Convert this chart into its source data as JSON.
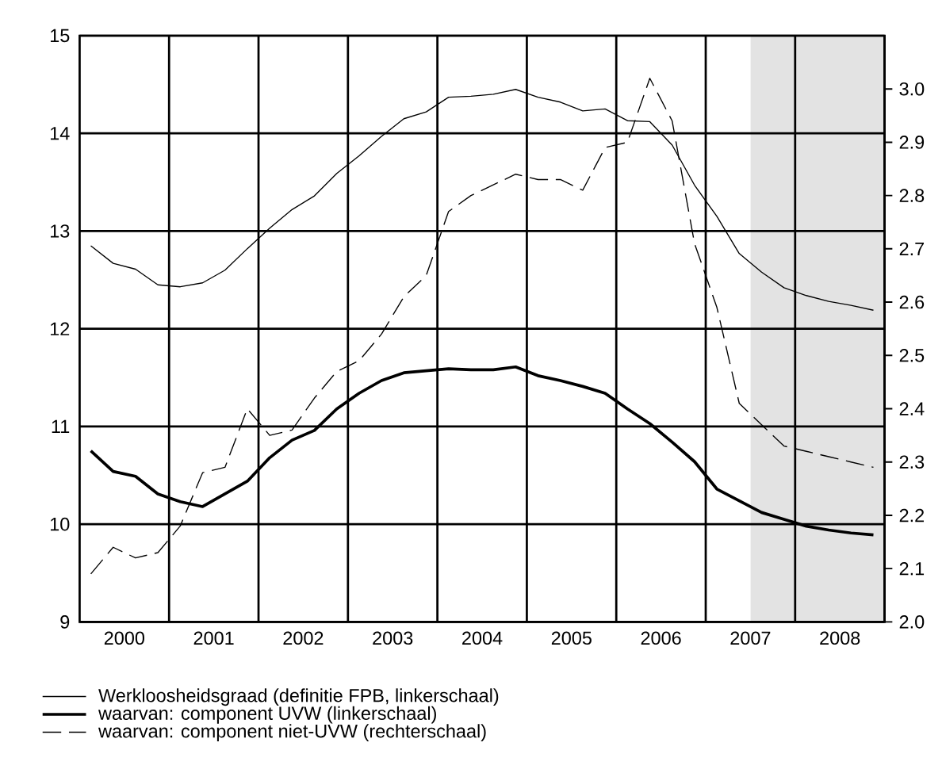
{
  "chart_data": {
    "type": "line",
    "x": [
      2000.125,
      2000.375,
      2000.625,
      2000.875,
      2001.125,
      2001.375,
      2001.625,
      2001.875,
      2002.125,
      2002.375,
      2002.625,
      2002.875,
      2003.125,
      2003.375,
      2003.625,
      2003.875,
      2004.125,
      2004.375,
      2004.625,
      2004.875,
      2005.125,
      2005.375,
      2005.625,
      2005.875,
      2006.125,
      2006.375,
      2006.625,
      2006.875,
      2007.125,
      2007.375,
      2007.625,
      2007.875,
      2008.125,
      2008.375,
      2008.625,
      2008.875
    ],
    "series": [
      {
        "name": "Werkloosheidsgraad (definitie FPB, linkerschaal)",
        "color": "#000000",
        "line_style": "solid",
        "axis": "y",
        "values": [
          12.85,
          12.67,
          12.61,
          12.45,
          12.43,
          12.47,
          12.6,
          12.82,
          13.03,
          13.22,
          13.36,
          13.59,
          13.77,
          13.97,
          14.15,
          14.22,
          14.37,
          14.38,
          14.4,
          14.45,
          14.37,
          14.32,
          14.23,
          14.25,
          14.13,
          14.12,
          13.88,
          13.47,
          13.15,
          12.77,
          12.58,
          12.42,
          12.34,
          12.28,
          12.24,
          12.19
        ]
      },
      {
        "name": "waarvan: component UVW (linkerschaal)",
        "color": "#000000",
        "line_style": "solid",
        "axis": "y",
        "values": [
          10.75,
          10.54,
          10.49,
          10.31,
          10.23,
          10.18,
          10.31,
          10.44,
          10.68,
          10.86,
          10.96,
          11.18,
          11.34,
          11.47,
          11.55,
          11.57,
          11.59,
          11.58,
          11.58,
          11.61,
          11.52,
          11.47,
          11.41,
          11.34,
          11.18,
          11.03,
          10.84,
          10.64,
          10.36,
          10.24,
          10.12,
          10.05,
          9.98,
          9.94,
          9.91,
          9.89
        ]
      },
      {
        "name": "waarvan: component niet-UVW (rechterschaal)",
        "color": "#000000",
        "line_style": "dashed",
        "axis": "y2",
        "values": [
          2.09,
          2.14,
          2.12,
          2.13,
          2.18,
          2.28,
          2.29,
          2.4,
          2.35,
          2.36,
          2.42,
          2.47,
          2.49,
          2.54,
          2.61,
          2.65,
          2.77,
          2.8,
          2.82,
          2.84,
          2.83,
          2.83,
          2.81,
          2.89,
          2.9,
          3.02,
          2.94,
          2.71,
          2.59,
          2.41,
          2.37,
          2.33,
          2.32,
          2.31,
          2.3,
          2.29
        ]
      }
    ],
    "xlim": [
      2000,
      2009
    ],
    "xticks": [
      {
        "value": 2000.5,
        "label": "2000"
      },
      {
        "value": 2001,
        "label": null
      },
      {
        "value": 2001.5,
        "label": "2001"
      },
      {
        "value": 2002,
        "label": null
      },
      {
        "value": 2002.5,
        "label": "2002"
      },
      {
        "value": 2003,
        "label": null
      },
      {
        "value": 2003.5,
        "label": "2003"
      },
      {
        "value": 2004,
        "label": null
      },
      {
        "value": 2004.5,
        "label": "2004"
      },
      {
        "value": 2005,
        "label": null
      },
      {
        "value": 2005.5,
        "label": "2005"
      },
      {
        "value": 2006,
        "label": null
      },
      {
        "value": 2006.5,
        "label": "2006"
      },
      {
        "value": 2007,
        "label": null
      },
      {
        "value": 2007.5,
        "label": "2007"
      },
      {
        "value": 2008,
        "label": null
      },
      {
        "value": 2008.5,
        "label": "2008"
      }
    ],
    "ylim": [
      9,
      15
    ],
    "yticks": [
      9,
      10,
      11,
      12,
      13,
      14,
      15
    ],
    "y2lim": [
      2.0,
      3.1
    ],
    "y2ticks": [
      {
        "value": 2,
        "label": "2.0"
      },
      2.1,
      2.2,
      2.3,
      2.4,
      2.5,
      2.6,
      2.7,
      2.8,
      2.9,
      {
        "value": 3,
        "label": "3.0"
      }
    ],
    "bands": [
      {
        "axis": "x",
        "from": 2007.5,
        "to": 2009,
        "color": "#e3e3e3"
      }
    ],
    "grid": true,
    "legend": "bottom",
    "marker": "none"
  }
}
